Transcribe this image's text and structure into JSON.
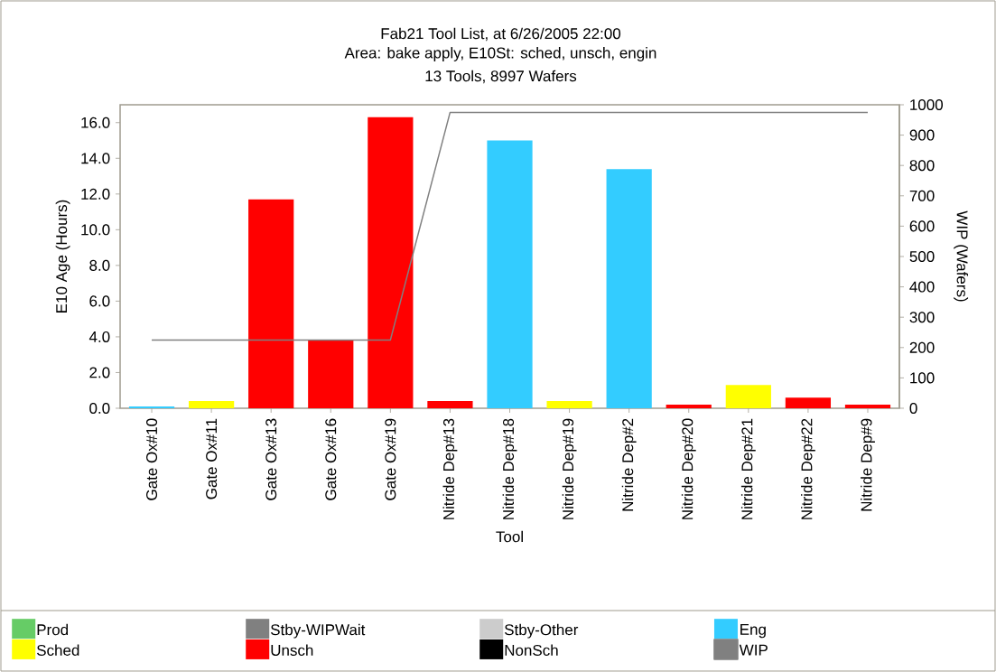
{
  "chart_data": {
    "type": "bar",
    "title": "Fab21 Tool List, at 6/26/2005 22:00",
    "subtitle": "Area: bake apply, E10St: sched, unsch, engin",
    "annotations": [
      "13 Tools, 8997 Wafers"
    ],
    "xlabel": "Tool",
    "ylabel": "E10 Age (Hours)",
    "y2label": "WIP (Wafers)",
    "categories": [
      "Gate Ox#10",
      "Gate Ox#11",
      "Gate Ox#13",
      "Gate Ox#16",
      "Gate Ox#19",
      "Nitride Dep#13",
      "Nitride Dep#18",
      "Nitride Dep#19",
      "Nitride Dep#2",
      "Nitride Dep#20",
      "Nitride Dep#21",
      "Nitride Dep#22",
      "Nitride Dep#9"
    ],
    "stacked": true,
    "series": [
      {
        "name": "Prod",
        "color": "#66cc66",
        "values": [
          null,
          null,
          null,
          null,
          null,
          null,
          null,
          null,
          null,
          null,
          null,
          null,
          null
        ]
      },
      {
        "name": "Stby-WIPWait",
        "color": "#808080",
        "values": [
          null,
          null,
          null,
          null,
          null,
          null,
          null,
          null,
          null,
          null,
          null,
          null,
          null
        ]
      },
      {
        "name": "Stby-Other",
        "color": "#cccccc",
        "values": [
          null,
          null,
          null,
          null,
          null,
          null,
          null,
          null,
          null,
          null,
          null,
          null,
          null
        ]
      },
      {
        "name": "Eng",
        "color": "#33ccff",
        "values": [
          0.1,
          null,
          null,
          null,
          null,
          null,
          15.0,
          null,
          13.4,
          null,
          null,
          null,
          null
        ]
      },
      {
        "name": "Sched",
        "color": "#ffff00",
        "values": [
          null,
          0.4,
          null,
          null,
          null,
          null,
          null,
          0.4,
          null,
          null,
          1.3,
          null,
          null
        ]
      },
      {
        "name": "Unsch",
        "color": "#ff0000",
        "values": [
          null,
          null,
          11.7,
          3.8,
          16.3,
          0.4,
          null,
          null,
          null,
          0.2,
          null,
          0.6,
          0.2
        ]
      },
      {
        "name": "NonSch",
        "color": "#000000",
        "values": [
          null,
          null,
          null,
          null,
          null,
          null,
          null,
          null,
          null,
          null,
          null,
          null,
          null
        ]
      },
      {
        "name": "WIP",
        "type": "line",
        "axis": "y2",
        "color": "#808080",
        "values": [
          225,
          225,
          225,
          225,
          225,
          975,
          975,
          975,
          975,
          975,
          975,
          975,
          975
        ]
      }
    ],
    "ylim": [
      0,
      17
    ],
    "yticks": [
      {
        "value": 0,
        "label": "0.0"
      },
      {
        "value": 2,
        "label": "2.0"
      },
      {
        "value": 4,
        "label": "4.0"
      },
      {
        "value": 6,
        "label": "6.0"
      },
      {
        "value": 8,
        "label": "8.0"
      },
      {
        "value": 10,
        "label": "10.0"
      },
      {
        "value": 12,
        "label": "12.0"
      },
      {
        "value": 14,
        "label": "14.0"
      },
      {
        "value": 16,
        "label": "16.0"
      }
    ],
    "y2lim": [
      0,
      1000
    ],
    "y2ticks": [
      0,
      100,
      200,
      300,
      400,
      500,
      600,
      700,
      800,
      900,
      1000
    ],
    "legend": "bottom"
  }
}
